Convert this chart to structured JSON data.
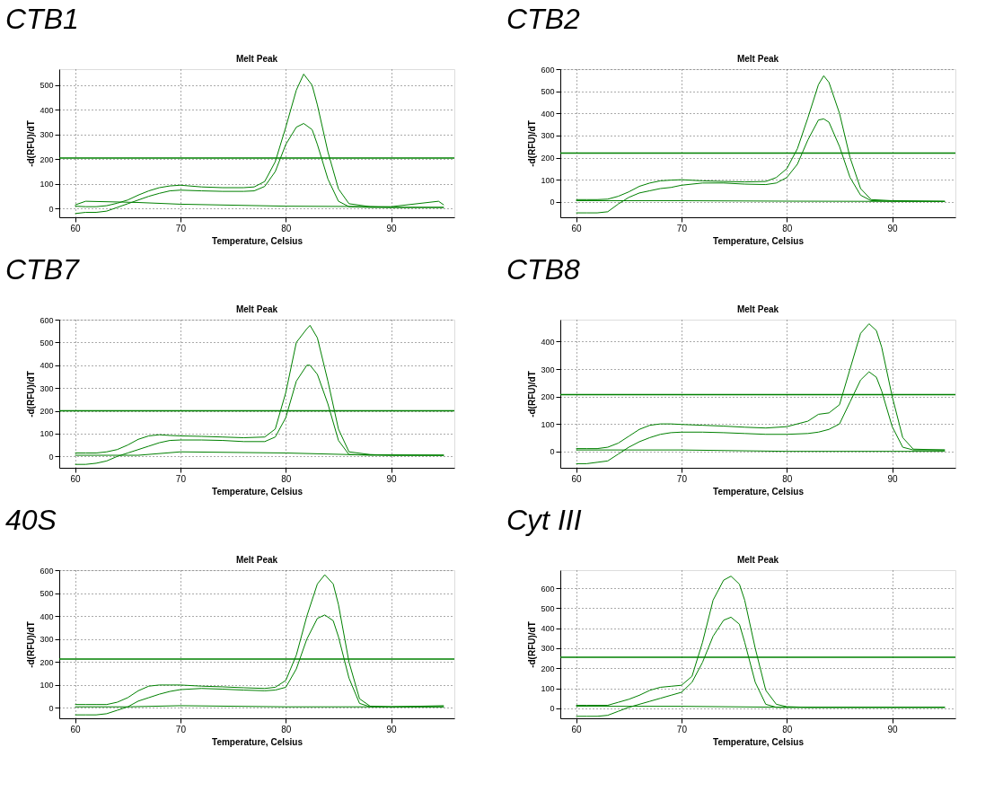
{
  "chart_data": [
    {
      "type": "line",
      "title": "CTB1",
      "subtitle": "Melt Peak",
      "xlabel": "Temperature, Celsius",
      "ylabel": "-d(RFU)/dT",
      "xlim": [
        58.5,
        96
      ],
      "xticks": [
        60,
        70,
        80,
        90
      ],
      "ylim": [
        -35,
        565
      ],
      "yticks": [
        0,
        100,
        200,
        300,
        400,
        500
      ],
      "grid": true,
      "ref_lines": [
        {
          "axis": "y",
          "value": 205,
          "color": "#008000"
        }
      ],
      "series": [
        {
          "color": "#008000",
          "x": [
            60,
            61,
            62,
            63,
            64,
            65,
            66,
            67,
            68,
            69,
            70,
            72,
            74,
            76,
            77,
            78,
            79,
            80,
            81,
            81.7,
            82.5,
            83,
            84,
            85,
            86,
            88,
            90,
            92,
            95
          ],
          "values": [
            10,
            8,
            8,
            12,
            22,
            35,
            55,
            72,
            85,
            92,
            95,
            88,
            85,
            85,
            88,
            110,
            190,
            330,
            480,
            545,
            500,
            420,
            230,
            80,
            20,
            8,
            5,
            5,
            5
          ]
        },
        {
          "color": "#008000",
          "x": [
            60,
            61,
            62,
            63,
            64,
            65,
            66,
            67,
            68,
            69,
            70,
            72,
            74,
            76,
            77,
            78,
            79,
            80,
            81,
            81.7,
            82.5,
            83,
            84,
            85,
            86,
            88,
            90,
            92,
            95
          ],
          "values": [
            -20,
            -15,
            -15,
            -10,
            5,
            20,
            35,
            50,
            62,
            72,
            75,
            72,
            70,
            70,
            72,
            90,
            150,
            260,
            330,
            345,
            320,
            260,
            120,
            30,
            8,
            5,
            5,
            5,
            5
          ]
        },
        {
          "color": "#008000",
          "x": [
            60,
            61,
            66,
            70,
            80,
            90,
            94.5,
            95
          ],
          "values": [
            15,
            30,
            25,
            18,
            10,
            8,
            30,
            15
          ]
        }
      ]
    },
    {
      "type": "line",
      "title": "CTB2",
      "subtitle": "Melt Peak",
      "xlabel": "Temperature, Celsius",
      "ylabel": "-d(RFU)/dT",
      "xlim": [
        58.5,
        96
      ],
      "xticks": [
        60,
        70,
        80,
        90
      ],
      "ylim": [
        -70,
        600
      ],
      "yticks": [
        0,
        100,
        200,
        300,
        400,
        500,
        600
      ],
      "grid": true,
      "ref_lines": [
        {
          "axis": "y",
          "value": 220,
          "color": "#008000"
        }
      ],
      "series": [
        {
          "color": "#008000",
          "x": [
            60,
            61,
            62,
            63,
            64,
            65,
            66,
            67,
            68,
            69,
            70,
            72,
            74,
            76,
            78,
            79,
            80,
            81,
            82,
            83,
            83.5,
            84,
            85,
            86,
            87,
            88,
            90,
            95
          ],
          "values": [
            10,
            10,
            10,
            12,
            25,
            45,
            70,
            85,
            95,
            98,
            100,
            95,
            92,
            90,
            92,
            110,
            150,
            240,
            380,
            530,
            570,
            540,
            400,
            200,
            60,
            10,
            5,
            2
          ]
        },
        {
          "color": "#008000",
          "x": [
            60,
            61,
            62,
            63,
            64,
            65,
            66,
            67,
            68,
            69,
            70,
            72,
            74,
            76,
            78,
            79,
            80,
            81,
            82,
            83,
            83.5,
            84,
            85,
            86,
            87,
            88,
            90,
            95
          ],
          "values": [
            -50,
            -50,
            -50,
            -45,
            -10,
            20,
            40,
            50,
            60,
            65,
            75,
            85,
            85,
            80,
            78,
            85,
            110,
            170,
            280,
            370,
            375,
            360,
            250,
            110,
            30,
            5,
            3,
            2
          ]
        },
        {
          "color": "#008000",
          "x": [
            60,
            70,
            80,
            90,
            95
          ],
          "values": [
            5,
            5,
            3,
            2,
            2
          ]
        }
      ]
    },
    {
      "type": "line",
      "title": "CTB7",
      "subtitle": "Melt Peak",
      "xlabel": "Temperature, Celsius",
      "ylabel": "-d(RFU)/dT",
      "xlim": [
        58.5,
        96
      ],
      "xticks": [
        60,
        70,
        80,
        90
      ],
      "ylim": [
        -50,
        600
      ],
      "yticks": [
        0,
        100,
        200,
        300,
        400,
        500,
        600
      ],
      "grid": true,
      "ref_lines": [
        {
          "axis": "y",
          "value": 200,
          "color": "#008000"
        }
      ],
      "series": [
        {
          "color": "#008000",
          "x": [
            60,
            61,
            62,
            63,
            64,
            65,
            66,
            67,
            68,
            69,
            70,
            72,
            74,
            76,
            78,
            79,
            80,
            81,
            82,
            82.3,
            83,
            84,
            85,
            86,
            88,
            90,
            95
          ],
          "values": [
            15,
            15,
            15,
            20,
            30,
            50,
            75,
            90,
            95,
            92,
            90,
            88,
            85,
            82,
            85,
            120,
            280,
            500,
            560,
            575,
            520,
            330,
            120,
            20,
            8,
            5,
            5
          ]
        },
        {
          "color": "#008000",
          "x": [
            60,
            61,
            62,
            63,
            64,
            65,
            66,
            67,
            68,
            69,
            70,
            72,
            74,
            76,
            78,
            79,
            80,
            81,
            82,
            82.3,
            83,
            84,
            85,
            86,
            88,
            90,
            95
          ],
          "values": [
            -35,
            -35,
            -30,
            -20,
            0,
            15,
            30,
            45,
            60,
            70,
            72,
            72,
            70,
            65,
            65,
            85,
            170,
            330,
            400,
            400,
            360,
            230,
            70,
            8,
            5,
            5,
            5
          ]
        },
        {
          "color": "#008000",
          "x": [
            60,
            66,
            70,
            80,
            86,
            95
          ],
          "values": [
            5,
            5,
            20,
            15,
            8,
            5
          ]
        }
      ]
    },
    {
      "type": "line",
      "title": "CTB8",
      "subtitle": "Melt Peak",
      "xlabel": "Temperature, Celsius",
      "ylabel": "-d(RFU)/dT",
      "xlim": [
        58.5,
        96
      ],
      "xticks": [
        60,
        70,
        80,
        90
      ],
      "ylim": [
        -60,
        480
      ],
      "yticks": [
        0,
        100,
        200,
        300,
        400
      ],
      "grid": true,
      "ref_lines": [
        {
          "axis": "y",
          "value": 207,
          "color": "#008000"
        }
      ],
      "series": [
        {
          "color": "#008000",
          "x": [
            60,
            61,
            62,
            63,
            64,
            65,
            66,
            67,
            68,
            69,
            70,
            72,
            74,
            76,
            78,
            80,
            82,
            83,
            84,
            85,
            86,
            87,
            87.8,
            88.5,
            89,
            90,
            91,
            92,
            95
          ],
          "values": [
            10,
            10,
            10,
            15,
            30,
            55,
            80,
            95,
            100,
            100,
            98,
            95,
            92,
            88,
            85,
            90,
            110,
            135,
            140,
            170,
            300,
            430,
            465,
            440,
            380,
            200,
            50,
            8,
            5
          ]
        },
        {
          "color": "#008000",
          "x": [
            60,
            61,
            62,
            63,
            64,
            65,
            66,
            67,
            68,
            69,
            70,
            72,
            74,
            76,
            78,
            80,
            82,
            83,
            84,
            85,
            86,
            87,
            87.8,
            88.5,
            89,
            90,
            91,
            92,
            95
          ],
          "values": [
            -45,
            -45,
            -40,
            -35,
            -10,
            15,
            35,
            50,
            62,
            68,
            70,
            70,
            68,
            65,
            62,
            62,
            65,
            70,
            80,
            100,
            180,
            260,
            290,
            270,
            220,
            90,
            15,
            5,
            5
          ]
        },
        {
          "color": "#008000",
          "x": [
            60,
            66,
            70,
            80,
            90,
            95
          ],
          "values": [
            5,
            5,
            5,
            0,
            0,
            0
          ]
        }
      ]
    },
    {
      "type": "line",
      "title": "40S",
      "subtitle": "Melt Peak",
      "xlabel": "Temperature, Celsius",
      "ylabel": "-d(RFU)/dT",
      "xlim": [
        58.5,
        96
      ],
      "xticks": [
        60,
        70,
        80,
        90
      ],
      "ylim": [
        -45,
        600
      ],
      "yticks": [
        0,
        100,
        200,
        300,
        400,
        500,
        600
      ],
      "grid": true,
      "ref_lines": [
        {
          "axis": "y",
          "value": 213,
          "color": "#008000"
        }
      ],
      "series": [
        {
          "color": "#008000",
          "x": [
            60,
            61,
            62,
            63,
            64,
            65,
            66,
            67,
            68,
            69,
            70,
            72,
            74,
            76,
            78,
            79,
            80,
            81,
            82,
            83,
            83.7,
            84.5,
            85,
            86,
            87,
            88,
            90,
            95
          ],
          "values": [
            15,
            15,
            15,
            15,
            25,
            45,
            75,
            95,
            100,
            100,
            100,
            95,
            92,
            88,
            85,
            90,
            120,
            230,
            400,
            540,
            580,
            540,
            450,
            200,
            40,
            8,
            5,
            10
          ]
        },
        {
          "color": "#008000",
          "x": [
            60,
            61,
            62,
            63,
            64,
            65,
            66,
            67,
            68,
            69,
            70,
            72,
            74,
            76,
            78,
            79,
            80,
            81,
            82,
            83,
            83.7,
            84.5,
            85,
            86,
            87,
            88,
            90,
            95
          ],
          "values": [
            -30,
            -30,
            -30,
            -25,
            -10,
            5,
            30,
            45,
            60,
            72,
            80,
            85,
            82,
            78,
            75,
            78,
            90,
            170,
            300,
            390,
            405,
            380,
            310,
            130,
            20,
            5,
            5,
            5
          ]
        },
        {
          "color": "#008000",
          "x": [
            60,
            65,
            70,
            80,
            90,
            95
          ],
          "values": [
            5,
            5,
            10,
            5,
            5,
            5
          ]
        }
      ]
    },
    {
      "type": "line",
      "title": "Cyt III",
      "subtitle": "Melt Peak",
      "xlabel": "Temperature, Celsius",
      "ylabel": "-d(RFU)/dT",
      "xlim": [
        58.5,
        96
      ],
      "xticks": [
        60,
        70,
        80,
        90
      ],
      "ylim": [
        -50,
        690
      ],
      "yticks": [
        0,
        100,
        200,
        300,
        400,
        500,
        600
      ],
      "grid": true,
      "ref_lines": [
        {
          "axis": "y",
          "value": 255,
          "color": "#008000"
        }
      ],
      "series": [
        {
          "color": "#008000",
          "x": [
            60,
            61,
            62,
            63,
            64,
            65,
            66,
            67,
            68,
            69,
            70,
            71,
            72,
            73,
            74,
            74.7,
            75.5,
            76,
            77,
            78,
            79,
            80,
            82,
            90,
            95
          ],
          "values": [
            15,
            15,
            15,
            15,
            30,
            45,
            65,
            90,
            105,
            110,
            115,
            160,
            330,
            540,
            640,
            660,
            620,
            540,
            300,
            90,
            20,
            8,
            5,
            5,
            5
          ]
        },
        {
          "color": "#008000",
          "x": [
            60,
            61,
            62,
            63,
            64,
            65,
            66,
            67,
            68,
            69,
            70,
            71,
            72,
            73,
            74,
            74.7,
            75.5,
            76,
            77,
            78,
            79,
            80,
            82,
            90,
            95
          ],
          "values": [
            -40,
            -40,
            -40,
            -35,
            -15,
            5,
            20,
            35,
            50,
            65,
            80,
            130,
            230,
            360,
            440,
            455,
            420,
            330,
            130,
            20,
            5,
            5,
            5,
            5,
            5
          ]
        },
        {
          "color": "#008000",
          "x": [
            60,
            65,
            70,
            80,
            90,
            95
          ],
          "values": [
            10,
            10,
            10,
            5,
            5,
            5
          ]
        }
      ]
    }
  ]
}
